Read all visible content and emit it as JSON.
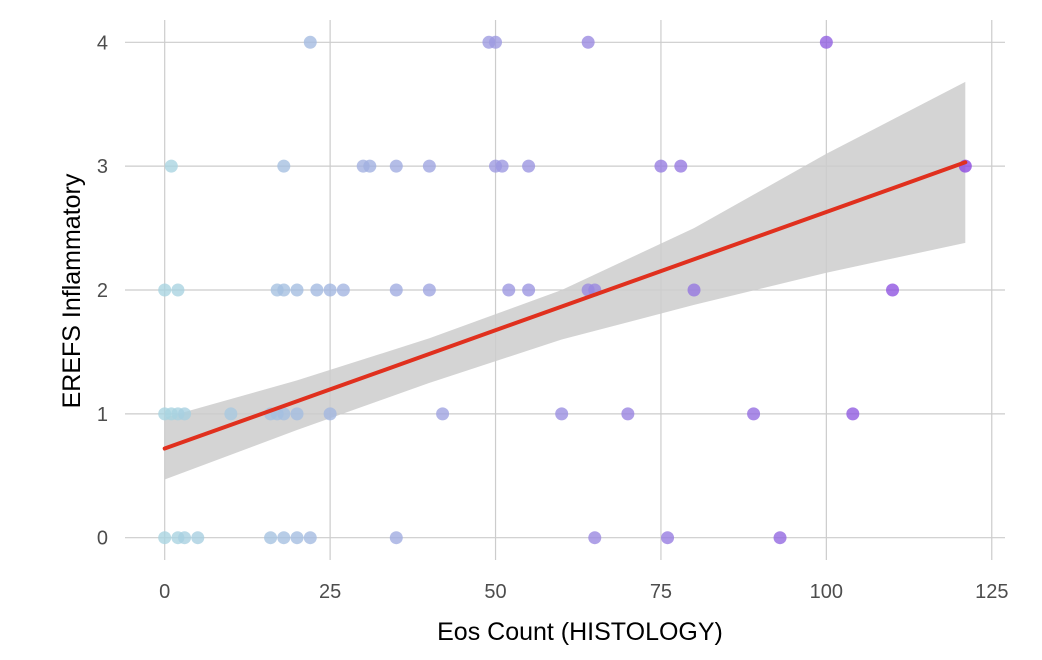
{
  "chart_data": {
    "type": "scatter",
    "title": "",
    "xlabel": "Eos Count (HISTOLOGY)",
    "ylabel": "EREFS Inflammatory",
    "xlim": [
      -6,
      127
    ],
    "ylim": [
      -0.18,
      4.18
    ],
    "x_ticks": [
      0,
      25,
      50,
      75,
      100,
      125
    ],
    "y_ticks": [
      0,
      1,
      2,
      3,
      4
    ],
    "grid": true,
    "legend": "none",
    "color_scale": {
      "low": "#a8d4e0",
      "high": "#8a44e0",
      "min": 0,
      "max": 121
    },
    "fit_line": {
      "color": "#e0301e",
      "intercept": 0.72,
      "slope": 0.0191,
      "x_range": [
        0,
        121
      ]
    },
    "confidence_band": {
      "color": "#cccccc",
      "x": [
        0,
        20,
        40,
        60,
        80,
        100,
        121
      ],
      "lower": [
        0.47,
        0.87,
        1.25,
        1.6,
        1.88,
        2.14,
        2.38
      ],
      "upper": [
        0.97,
        1.27,
        1.61,
        2.0,
        2.5,
        3.1,
        3.68
      ]
    },
    "points": [
      {
        "x": 22,
        "y": 4
      },
      {
        "x": 49,
        "y": 4
      },
      {
        "x": 50,
        "y": 4
      },
      {
        "x": 64,
        "y": 4
      },
      {
        "x": 100,
        "y": 4
      },
      {
        "x": 1,
        "y": 3
      },
      {
        "x": 18,
        "y": 3
      },
      {
        "x": 30,
        "y": 3
      },
      {
        "x": 31,
        "y": 3
      },
      {
        "x": 35,
        "y": 3
      },
      {
        "x": 40,
        "y": 3
      },
      {
        "x": 50,
        "y": 3
      },
      {
        "x": 51,
        "y": 3
      },
      {
        "x": 55,
        "y": 3
      },
      {
        "x": 75,
        "y": 3
      },
      {
        "x": 78,
        "y": 3
      },
      {
        "x": 121,
        "y": 3
      },
      {
        "x": 0,
        "y": 2
      },
      {
        "x": 2,
        "y": 2
      },
      {
        "x": 17,
        "y": 2
      },
      {
        "x": 18,
        "y": 2
      },
      {
        "x": 20,
        "y": 2
      },
      {
        "x": 23,
        "y": 2
      },
      {
        "x": 25,
        "y": 2
      },
      {
        "x": 27,
        "y": 2
      },
      {
        "x": 35,
        "y": 2
      },
      {
        "x": 40,
        "y": 2
      },
      {
        "x": 52,
        "y": 2
      },
      {
        "x": 55,
        "y": 2
      },
      {
        "x": 64,
        "y": 2
      },
      {
        "x": 65,
        "y": 2
      },
      {
        "x": 80,
        "y": 2
      },
      {
        "x": 110,
        "y": 2
      },
      {
        "x": 0,
        "y": 1
      },
      {
        "x": 1,
        "y": 1
      },
      {
        "x": 2,
        "y": 1
      },
      {
        "x": 3,
        "y": 1
      },
      {
        "x": 10,
        "y": 1
      },
      {
        "x": 16,
        "y": 1
      },
      {
        "x": 17,
        "y": 1
      },
      {
        "x": 18,
        "y": 1
      },
      {
        "x": 20,
        "y": 1
      },
      {
        "x": 25,
        "y": 1
      },
      {
        "x": 42,
        "y": 1
      },
      {
        "x": 60,
        "y": 1
      },
      {
        "x": 70,
        "y": 1
      },
      {
        "x": 89,
        "y": 1
      },
      {
        "x": 104,
        "y": 1
      },
      {
        "x": 0,
        "y": 0
      },
      {
        "x": 2,
        "y": 0
      },
      {
        "x": 3,
        "y": 0
      },
      {
        "x": 5,
        "y": 0
      },
      {
        "x": 16,
        "y": 0
      },
      {
        "x": 18,
        "y": 0
      },
      {
        "x": 20,
        "y": 0
      },
      {
        "x": 22,
        "y": 0
      },
      {
        "x": 35,
        "y": 0
      },
      {
        "x": 65,
        "y": 0
      },
      {
        "x": 76,
        "y": 0
      },
      {
        "x": 93,
        "y": 0
      }
    ]
  }
}
